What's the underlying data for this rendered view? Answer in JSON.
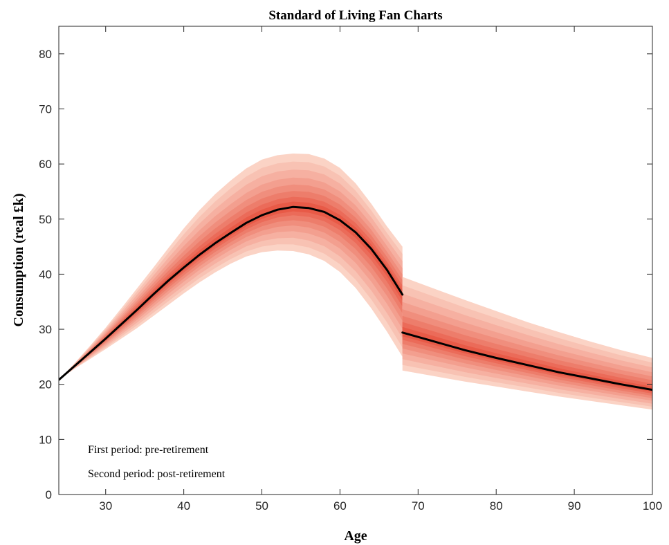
{
  "chart_data": {
    "type": "area",
    "title": "Standard of Living Fan Charts",
    "xlabel": "Age",
    "ylabel": "Consumption (real £k)",
    "xlim": [
      24,
      100
    ],
    "ylim": [
      0,
      85
    ],
    "xticks": [
      30,
      40,
      50,
      60,
      70,
      80,
      90,
      100
    ],
    "yticks": [
      0,
      10,
      20,
      30,
      40,
      50,
      60,
      70,
      80
    ],
    "grid": false,
    "legend": "none",
    "annotations": [
      "First period: pre-retirement",
      "Second period: post-retirement"
    ],
    "colors": {
      "median": "#000000",
      "fan_outer": "#fbd3c5",
      "fan_inner": "#e85a47"
    },
    "series": [
      {
        "role": "pre-retirement",
        "x": [
          24,
          26,
          28,
          30,
          32,
          34,
          36,
          38,
          40,
          42,
          44,
          46,
          48,
          50,
          52,
          54,
          56,
          58,
          60,
          62,
          64,
          66,
          68
        ],
        "median": [
          20.8,
          23.3,
          25.8,
          28.3,
          30.9,
          33.5,
          36.2,
          38.8,
          41.2,
          43.5,
          45.6,
          47.5,
          49.3,
          50.7,
          51.7,
          52.2,
          52.0,
          51.3,
          49.8,
          47.6,
          44.6,
          40.8,
          36.3
        ],
        "upper": [
          20.8,
          23.8,
          27.0,
          30.3,
          33.8,
          37.4,
          41.0,
          44.7,
          48.3,
          51.6,
          54.5,
          57.0,
          59.2,
          60.8,
          61.6,
          61.9,
          61.8,
          61.0,
          59.3,
          56.5,
          52.8,
          48.7,
          45.0
        ],
        "lower": [
          20.8,
          22.8,
          24.6,
          26.4,
          28.3,
          30.2,
          32.3,
          34.4,
          36.5,
          38.5,
          40.3,
          41.9,
          43.2,
          44.0,
          44.3,
          44.2,
          43.6,
          42.4,
          40.4,
          37.5,
          33.8,
          29.6,
          25.0
        ]
      },
      {
        "role": "post-retirement",
        "x": [
          68,
          72,
          76,
          80,
          84,
          88,
          92,
          96,
          100
        ],
        "median": [
          29.4,
          27.8,
          26.2,
          24.8,
          23.5,
          22.2,
          21.1,
          20.0,
          19.0
        ],
        "upper": [
          39.5,
          37.4,
          35.3,
          33.3,
          31.3,
          29.5,
          27.8,
          26.2,
          24.8
        ],
        "lower": [
          22.5,
          21.5,
          20.5,
          19.6,
          18.7,
          17.8,
          17.0,
          16.2,
          15.4
        ]
      }
    ]
  }
}
